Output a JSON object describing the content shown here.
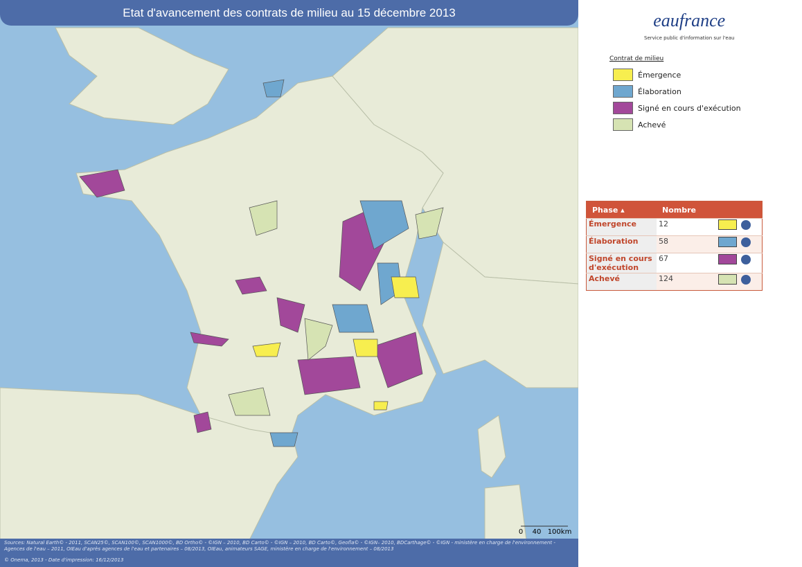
{
  "title": "Etat d'avancement des contrats de milieu au 15 décembre 2013",
  "logo": {
    "name": "eaufrance",
    "tagline": "Service public d'information sur l'eau"
  },
  "legend": {
    "title": "Contrat de milieu",
    "items": [
      {
        "label": "Émergence",
        "color": "#f7ee4f"
      },
      {
        "label": "Élaboration",
        "color": "#6fa7cf"
      },
      {
        "label": "Signé en cours d'exécution",
        "color": "#a2489a"
      },
      {
        "label": "Achevé",
        "color": "#d6e3b3"
      }
    ]
  },
  "table": {
    "headers": [
      "Phase",
      "Nombre"
    ],
    "rows": [
      [
        "Émergence",
        12
      ],
      [
        "Élaboration",
        58
      ],
      [
        "Signé en cours d'exécution",
        67
      ],
      [
        "Achevé",
        124
      ]
    ]
  },
  "scale": [
    "0",
    "40",
    "100km"
  ],
  "sources": "Sources: Natural Earth© - 2011, SCAN25©, SCAN100©, SCAN1000©, BD Ortho© - ©IGN – 2010, BD Carto© - ©IGN – 2010, BD Carto©, Geofla© - ©IGN– 2010, BDCarthage© - ©IGN - ministère en charge de l'environnement - Agences de l'eau – 2011, OIEau d'après agences de l'eau et partenaires – 08/2013, OIEau, animateurs SAGE, ministère en charge de l'environnement – 08/2013",
  "credit": "© Onema, 2013 - Date d'impression: 16/12/2013"
}
